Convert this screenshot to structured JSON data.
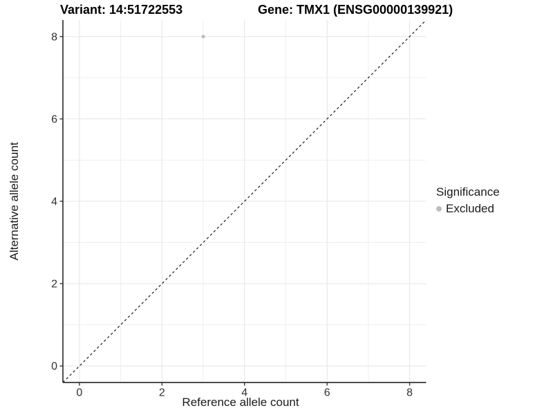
{
  "chart_data": {
    "type": "scatter",
    "title_left": "Variant: 14:51722553",
    "title_right": "Gene: TMX1 (ENSG00000139921)",
    "xlabel": "Reference allele count",
    "ylabel": "Alternative allele count",
    "xlim": [
      -0.4,
      8.4
    ],
    "ylim": [
      -0.4,
      8.4
    ],
    "x_ticks": [
      0,
      2,
      4,
      6,
      8
    ],
    "y_ticks": [
      0,
      2,
      4,
      6,
      8
    ],
    "grid_lines": [
      0,
      1,
      2,
      3,
      4,
      5,
      6,
      7,
      8
    ],
    "grid_on": true,
    "legend": {
      "title": "Significance",
      "position": "right"
    },
    "series": [
      {
        "name": "Excluded",
        "color": "#bdbdbd",
        "points": [
          {
            "x": 3,
            "y": 8
          }
        ]
      }
    ],
    "reference_line": {
      "slope": 1,
      "intercept": 0,
      "style": "dashed",
      "color": "#1a1a1a"
    },
    "colors": {
      "background": "#ffffff",
      "grid_major": "#e4e4e4",
      "grid_minor": "#efefef",
      "axis": "#333333",
      "tick_label": "#303030"
    }
  }
}
